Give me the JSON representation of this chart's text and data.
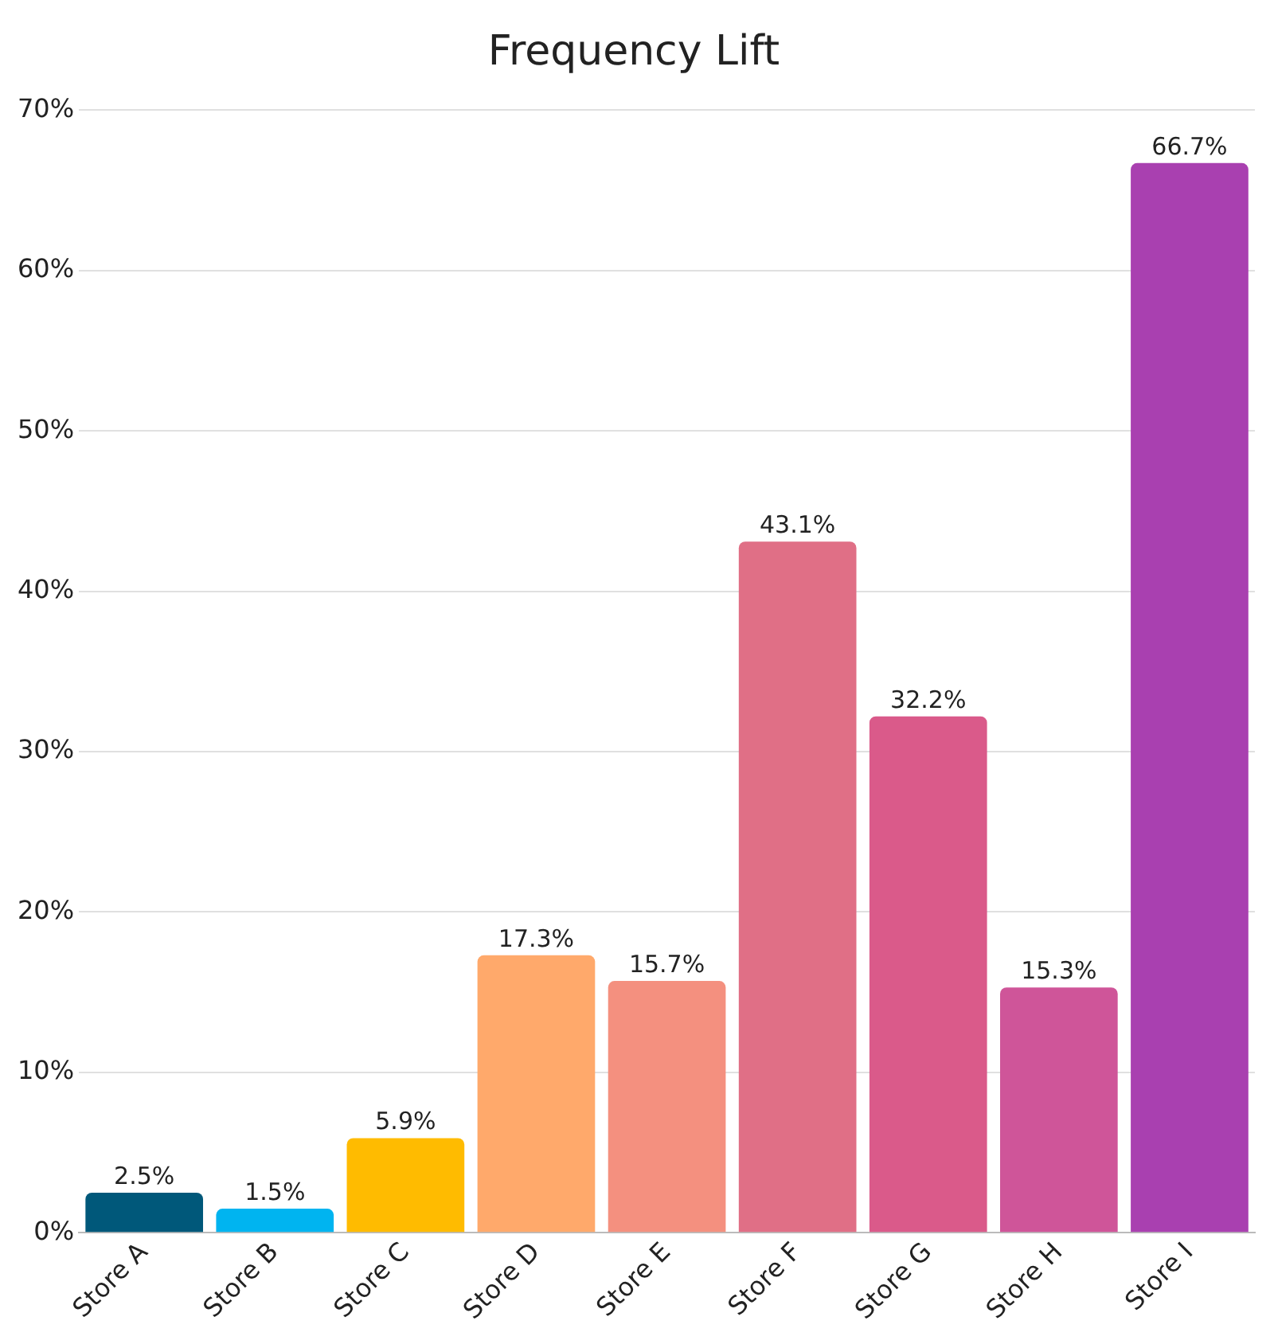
{
  "chart_data": {
    "type": "bar",
    "title": "Frequency Lift",
    "categories": [
      "Store A",
      "Store B",
      "Store C",
      "Store D",
      "Store E",
      "Store F",
      "Store G",
      "Store H",
      "Store I"
    ],
    "values": [
      2.5,
      1.5,
      5.9,
      17.3,
      15.7,
      43.1,
      32.2,
      15.3,
      66.7
    ],
    "colors": [
      "#00587a",
      "#00b4f0",
      "#ffbb00",
      "#ffa96b",
      "#f4907f",
      "#e06f86",
      "#da5a8a",
      "#cf5599",
      "#a940b0"
    ],
    "value_labels": [
      "2.5%",
      "1.5%",
      "5.9%",
      "17.3%",
      "15.7%",
      "43.1%",
      "32.2%",
      "15.3%",
      "66.7%"
    ],
    "ylim": [
      0,
      70
    ],
    "yticks": [
      {
        "value": 0,
        "label": "0%"
      },
      {
        "value": 10,
        "label": "10%"
      },
      {
        "value": 20,
        "label": "20%"
      },
      {
        "value": 30,
        "label": "30%"
      },
      {
        "value": 40,
        "label": "40%"
      },
      {
        "value": 50,
        "label": "50%"
      },
      {
        "value": 60,
        "label": "60%"
      },
      {
        "value": 70,
        "label": "70%"
      }
    ],
    "grid": "y",
    "legend": false
  }
}
